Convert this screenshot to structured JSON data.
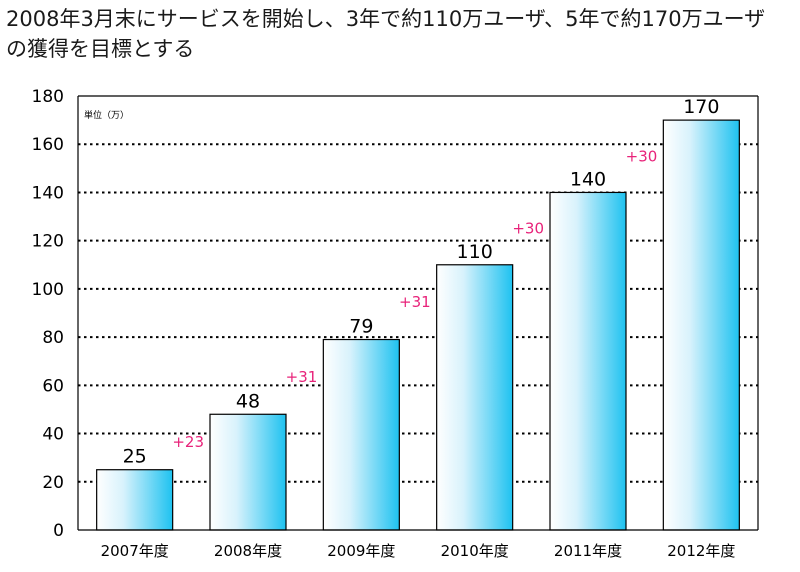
{
  "title": "2008年3月末にサービスを開始し、3年で約110万ユーザ、5年で約170万ユーザの獲得を目標とする",
  "chart_data": {
    "type": "bar",
    "title": "2008年3月末にサービスを開始し、3年で約110万ユーザ、5年で約170万ユーザの獲得を目標とする",
    "unit_label": "単位（万）",
    "categories": [
      "2007年度",
      "2008年度",
      "2009年度",
      "2010年度",
      "2011年度",
      "2012年度"
    ],
    "values": [
      25,
      48,
      79,
      110,
      140,
      170
    ],
    "value_labels": [
      "25",
      "48",
      "79",
      "110",
      "140",
      "170"
    ],
    "deltas": [
      "",
      "+23",
      "+31",
      "+31",
      "+30",
      "+30"
    ],
    "ylim": [
      0,
      180
    ],
    "yticks": [
      0,
      20,
      40,
      60,
      80,
      100,
      120,
      140,
      160,
      180
    ],
    "grid": true,
    "colors": {
      "bar_light": "#ffffff",
      "bar_dark": "#1ec2f0",
      "delta": "#e8237a",
      "grid": "#000000"
    }
  }
}
